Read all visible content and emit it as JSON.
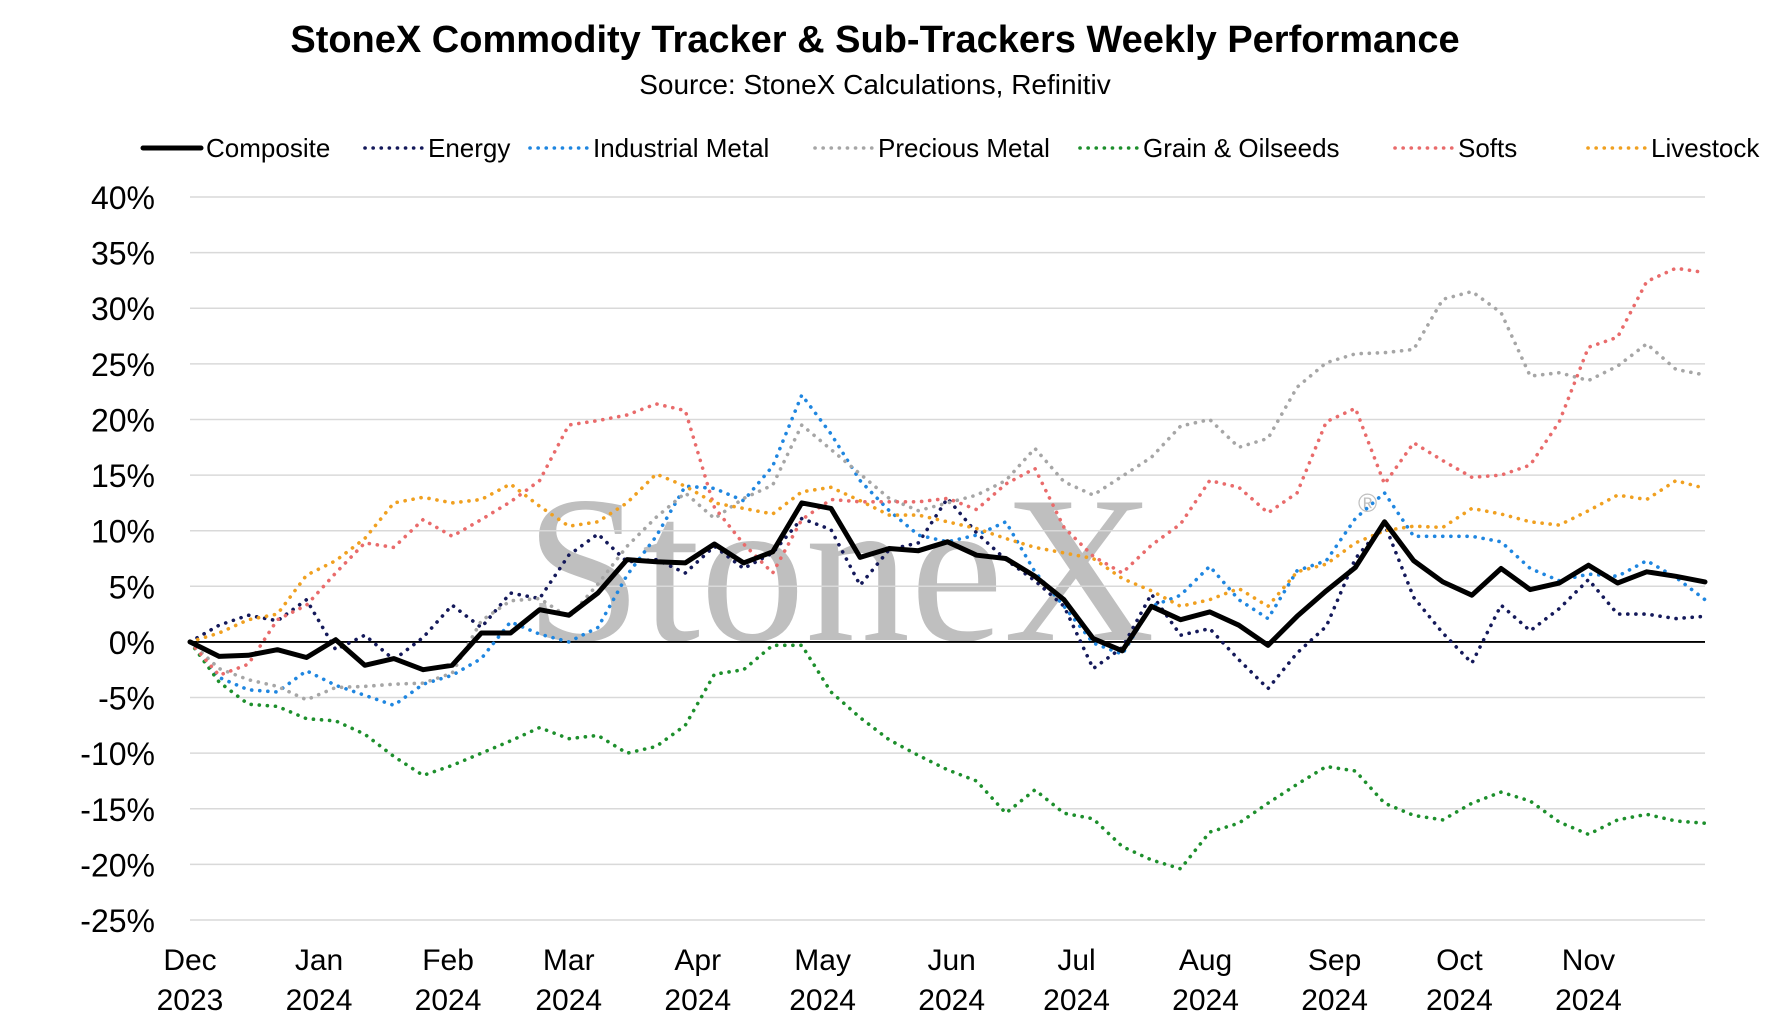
{
  "chart_data": {
    "type": "line",
    "title": "StoneX Commodity Tracker & Sub-Trackers Weekly Performance",
    "subtitle": "Source: StoneX Calculations, Refinitiv",
    "watermark": "StoneX",
    "watermark_mark": "®",
    "ylim": [
      -25,
      40
    ],
    "yticks": [
      40,
      35,
      30,
      25,
      20,
      15,
      10,
      5,
      0,
      -5,
      -10,
      -15,
      -20,
      -25
    ],
    "ytick_labels": [
      "40%",
      "35%",
      "30%",
      "25%",
      "20%",
      "15%",
      "10%",
      "5%",
      "0%",
      "-5%",
      "-10%",
      "-15%",
      "-20%",
      "-25%"
    ],
    "xlim": [
      "2023-12-01",
      "2024-11-29"
    ],
    "xticks": [
      {
        "date": "2023-12-01",
        "month": "Dec",
        "year": "2023"
      },
      {
        "date": "2024-01-01",
        "month": "Jan",
        "year": "2024"
      },
      {
        "date": "2024-02-01",
        "month": "Feb",
        "year": "2024"
      },
      {
        "date": "2024-03-01",
        "month": "Mar",
        "year": "2024"
      },
      {
        "date": "2024-04-01",
        "month": "Apr",
        "year": "2024"
      },
      {
        "date": "2024-05-01",
        "month": "May",
        "year": "2024"
      },
      {
        "date": "2024-06-01",
        "month": "Jun",
        "year": "2024"
      },
      {
        "date": "2024-07-01",
        "month": "Jul",
        "year": "2024"
      },
      {
        "date": "2024-08-01",
        "month": "Aug",
        "year": "2024"
      },
      {
        "date": "2024-09-01",
        "month": "Sep",
        "year": "2024"
      },
      {
        "date": "2024-10-01",
        "month": "Oct",
        "year": "2024"
      },
      {
        "date": "2024-11-01",
        "month": "Nov",
        "year": "2024"
      }
    ],
    "x": [
      "2023-12-01",
      "2023-12-08",
      "2023-12-15",
      "2023-12-22",
      "2023-12-29",
      "2024-01-05",
      "2024-01-12",
      "2024-01-19",
      "2024-01-26",
      "2024-02-02",
      "2024-02-09",
      "2024-02-16",
      "2024-02-23",
      "2024-03-01",
      "2024-03-08",
      "2024-03-15",
      "2024-03-22",
      "2024-03-29",
      "2024-04-05",
      "2024-04-12",
      "2024-04-19",
      "2024-04-26",
      "2024-05-03",
      "2024-05-10",
      "2024-05-17",
      "2024-05-24",
      "2024-05-31",
      "2024-06-07",
      "2024-06-14",
      "2024-06-21",
      "2024-06-28",
      "2024-07-05",
      "2024-07-12",
      "2024-07-19",
      "2024-07-26",
      "2024-08-02",
      "2024-08-09",
      "2024-08-16",
      "2024-08-23",
      "2024-08-30",
      "2024-09-06",
      "2024-09-13",
      "2024-09-20",
      "2024-09-27",
      "2024-10-04",
      "2024-10-11",
      "2024-10-18",
      "2024-10-25",
      "2024-11-01",
      "2024-11-08",
      "2024-11-15",
      "2024-11-22",
      "2024-11-29"
    ],
    "legend_position": "top",
    "grid": true,
    "series": [
      {
        "name": "Composite",
        "color": "#000000",
        "style": "solid",
        "values": [
          0,
          -1.3,
          -1.2,
          -0.7,
          -1.4,
          0.2,
          -2.1,
          -1.5,
          -2.5,
          -2.1,
          0.8,
          0.8,
          2.9,
          2.4,
          4.4,
          7.4,
          7.2,
          7.1,
          8.8,
          7.1,
          8.1,
          12.5,
          12.0,
          7.6,
          8.4,
          8.2,
          9.0,
          7.8,
          7.5,
          5.9,
          3.8,
          0.3,
          -0.8,
          3.2,
          2.0,
          2.7,
          1.5,
          -0.3,
          2.3,
          4.6,
          6.7,
          10.8,
          7.3,
          5.4,
          4.2,
          6.6,
          4.7,
          5.3,
          6.9,
          5.3,
          6.3,
          5.9,
          5.4
        ]
      },
      {
        "name": "Energy",
        "color": "#14195a",
        "style": "dotted",
        "values": [
          0,
          1.5,
          2.4,
          1.9,
          3.8,
          -0.7,
          0.6,
          -1.6,
          0.4,
          3.3,
          1.3,
          4.4,
          3.9,
          7.8,
          9.7,
          7.2,
          7.4,
          6.2,
          8.6,
          6.6,
          8.0,
          11.1,
          10.1,
          5.1,
          8.3,
          8.9,
          12.9,
          9.8,
          7.4,
          5.5,
          3.2,
          -2.4,
          -0.5,
          4.3,
          0.6,
          1.2,
          -1.6,
          -4.2,
          -1.0,
          1.4,
          7.5,
          10.6,
          4.0,
          0.8,
          -1.9,
          3.3,
          1.0,
          3.0,
          5.6,
          2.5,
          2.5,
          2.1,
          2.3
        ]
      },
      {
        "name": "Industrial Metal",
        "color": "#1f86e0",
        "style": "dotted",
        "values": [
          0,
          -3.2,
          -4.3,
          -4.5,
          -2.6,
          -3.9,
          -4.8,
          -5.7,
          -3.8,
          -3.0,
          -1.5,
          1.8,
          0.7,
          0.0,
          1.3,
          6.0,
          9.5,
          14.0,
          13.8,
          12.7,
          15.8,
          22.2,
          18.7,
          14.5,
          11.8,
          9.6,
          9.0,
          9.6,
          10.8,
          6.3,
          3.2,
          -0.1,
          -1.1,
          3.2,
          4.2,
          6.8,
          3.8,
          2.1,
          6.4,
          7.3,
          11.1,
          13.4,
          9.5,
          9.5,
          9.5,
          9.0,
          6.6,
          5.5,
          6.1,
          5.9,
          7.3,
          5.8,
          3.8
        ]
      },
      {
        "name": "Precious Metal",
        "color": "#a6a6a6",
        "style": "dotted",
        "values": [
          0,
          -2.4,
          -3.4,
          -4.0,
          -5.2,
          -4.1,
          -4.0,
          -3.8,
          -3.7,
          -2.8,
          1.9,
          3.7,
          3.9,
          2.2,
          5.2,
          8.6,
          11.2,
          13.4,
          11.1,
          12.9,
          14.1,
          19.5,
          17.3,
          15.1,
          12.9,
          11.8,
          12.5,
          13.2,
          14.5,
          17.4,
          14.4,
          13.2,
          14.9,
          16.6,
          19.4,
          20.0,
          17.5,
          18.3,
          22.9,
          25.1,
          25.9,
          26.0,
          26.3,
          30.8,
          31.5,
          29.6,
          23.9,
          24.2,
          23.5,
          24.8,
          26.8,
          24.5,
          24.0
        ]
      },
      {
        "name": "Grain & Oilseeds",
        "color": "#1d8f2c",
        "style": "dotted",
        "values": [
          0,
          -3.6,
          -5.6,
          -5.8,
          -6.9,
          -7.1,
          -8.3,
          -10.3,
          -12.0,
          -11.1,
          -10.0,
          -8.9,
          -7.7,
          -8.7,
          -8.4,
          -10.0,
          -9.4,
          -7.5,
          -2.9,
          -2.5,
          -0.3,
          -0.3,
          -4.5,
          -6.8,
          -8.8,
          -10.2,
          -11.5,
          -12.5,
          -15.4,
          -13.3,
          -15.4,
          -15.9,
          -18.4,
          -19.6,
          -20.4,
          -17.1,
          -16.3,
          -14.5,
          -12.8,
          -11.2,
          -11.6,
          -14.5,
          -15.6,
          -16.0,
          -14.5,
          -13.5,
          -14.3,
          -16.2,
          -17.3,
          -16.0,
          -15.5,
          -16.1,
          -16.3
        ]
      },
      {
        "name": "Softs",
        "color": "#e96b6b",
        "style": "dotted",
        "values": [
          0,
          -3.0,
          -2.0,
          2.0,
          3.3,
          6.2,
          8.9,
          8.5,
          11.0,
          9.5,
          11.0,
          12.6,
          14.5,
          19.5,
          19.9,
          20.4,
          21.4,
          20.8,
          12.1,
          8.8,
          6.2,
          11.0,
          12.8,
          12.6,
          12.6,
          12.6,
          12.9,
          11.9,
          14.2,
          15.6,
          10.3,
          7.7,
          6.2,
          8.7,
          10.6,
          14.5,
          13.9,
          11.6,
          13.4,
          19.8,
          21.0,
          14.2,
          17.9,
          16.3,
          14.8,
          15.0,
          15.9,
          19.8,
          26.5,
          27.4,
          32.4,
          33.6,
          33.2
        ]
      },
      {
        "name": "Livestock",
        "color": "#f0a020",
        "style": "dotted",
        "values": [
          0,
          0.8,
          2.0,
          2.5,
          6.0,
          7.3,
          9.3,
          12.5,
          13.0,
          12.5,
          12.8,
          14.2,
          12.2,
          10.4,
          10.8,
          12.5,
          15.1,
          14.0,
          12.5,
          12.0,
          11.5,
          13.5,
          13.9,
          12.7,
          11.4,
          11.4,
          10.8,
          10.2,
          9.3,
          8.5,
          8.0,
          7.5,
          5.7,
          4.6,
          3.2,
          3.8,
          4.8,
          3.2,
          6.3,
          7.0,
          8.9,
          10.0,
          10.4,
          10.3,
          12.0,
          11.5,
          10.8,
          10.5,
          11.8,
          13.2,
          12.8,
          14.5,
          13.8
        ]
      }
    ]
  }
}
